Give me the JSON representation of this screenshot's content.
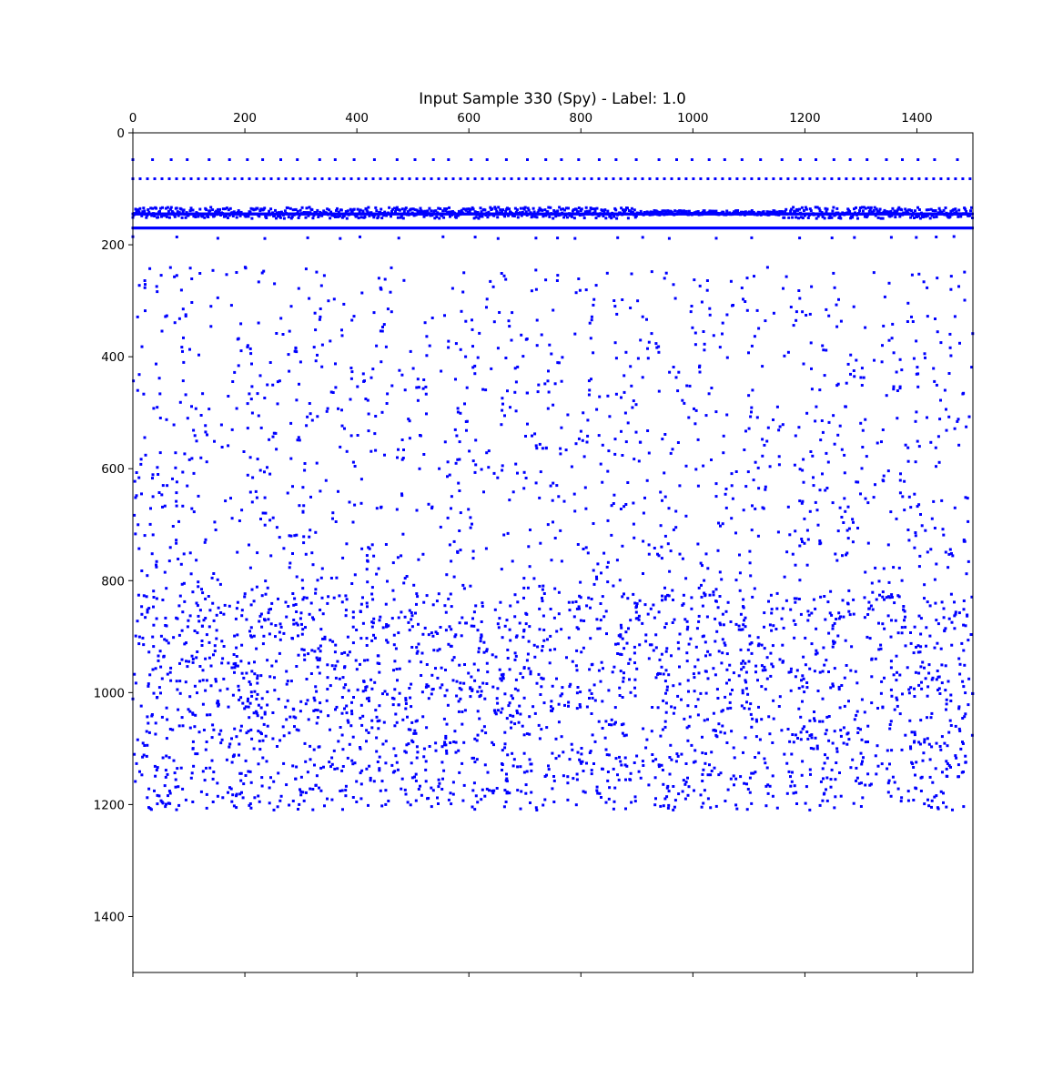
{
  "chart_data": {
    "type": "scatter",
    "title": "Input Sample 330 (Spy) - Label: 1.0",
    "xlabel": "",
    "ylabel": "",
    "xlim": [
      0,
      1500
    ],
    "ylim": [
      1500,
      0
    ],
    "y_inverted": true,
    "x_axis_position": "top",
    "grid": false,
    "legend": "none",
    "marker_color": "#0000ff",
    "x_ticks": [
      "0",
      "200",
      "400",
      "600",
      "800",
      "1000",
      "1200",
      "1400"
    ],
    "y_ticks": [
      "0",
      "200",
      "400",
      "600",
      "800",
      "1000",
      "1200",
      "1400"
    ],
    "bands": [
      {
        "name": "",
        "y": 48,
        "x_range": [
          0,
          1500
        ],
        "pattern": "sparse regular dots"
      },
      {
        "name": "",
        "y": 82,
        "x_range": [
          0,
          1500
        ],
        "pattern": "dotted line"
      },
      {
        "name": "",
        "y": 143,
        "x_range": [
          0,
          1500
        ],
        "pattern": "noisy band, spread ±12"
      },
      {
        "name": "",
        "y": 170,
        "x_range": [
          0,
          1500
        ],
        "pattern": "continuous line"
      },
      {
        "name": "",
        "y": 187,
        "x_range": [
          0,
          1500
        ],
        "pattern": "sparse dots"
      }
    ],
    "scatter_cloud": {
      "x_range": [
        0,
        1500
      ],
      "y_range": [
        240,
        1210
      ],
      "density": "sparse between y 250 and 800, dense between y 820 and 1200"
    }
  }
}
